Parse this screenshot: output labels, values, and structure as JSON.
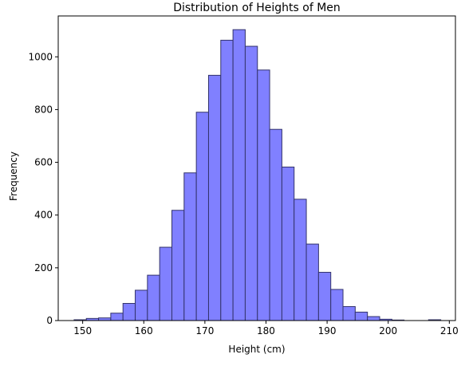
{
  "chart_data": {
    "type": "bar",
    "title": "Distribution of Heights of Men",
    "xlabel": "Height (cm)",
    "ylabel": "Frequency",
    "xlim": [
      146,
      211
    ],
    "ylim": [
      0,
      1155
    ],
    "xticks": [
      150,
      160,
      170,
      180,
      190,
      200,
      210
    ],
    "yticks": [
      0,
      200,
      400,
      600,
      800,
      1000
    ],
    "grid": false,
    "bar_color": "#8080ff",
    "edge_color": "#33336b",
    "bins": [
      {
        "x0": 148.6,
        "x1": 150.6,
        "count": 3
      },
      {
        "x0": 150.6,
        "x1": 152.6,
        "count": 8
      },
      {
        "x0": 152.6,
        "x1": 154.6,
        "count": 10
      },
      {
        "x0": 154.6,
        "x1": 156.6,
        "count": 28
      },
      {
        "x0": 156.6,
        "x1": 158.6,
        "count": 65
      },
      {
        "x0": 158.6,
        "x1": 160.6,
        "count": 115
      },
      {
        "x0": 160.6,
        "x1": 162.6,
        "count": 172
      },
      {
        "x0": 162.6,
        "x1": 164.6,
        "count": 278
      },
      {
        "x0": 164.6,
        "x1": 166.6,
        "count": 418
      },
      {
        "x0": 166.6,
        "x1": 168.6,
        "count": 560
      },
      {
        "x0": 168.6,
        "x1": 170.6,
        "count": 790
      },
      {
        "x0": 170.6,
        "x1": 172.6,
        "count": 930
      },
      {
        "x0": 172.6,
        "x1": 174.6,
        "count": 1063
      },
      {
        "x0": 174.6,
        "x1": 176.6,
        "count": 1103
      },
      {
        "x0": 176.6,
        "x1": 178.6,
        "count": 1040
      },
      {
        "x0": 178.6,
        "x1": 180.6,
        "count": 950
      },
      {
        "x0": 180.6,
        "x1": 182.6,
        "count": 725
      },
      {
        "x0": 182.6,
        "x1": 184.6,
        "count": 582
      },
      {
        "x0": 184.6,
        "x1": 186.6,
        "count": 460
      },
      {
        "x0": 186.6,
        "x1": 188.6,
        "count": 290
      },
      {
        "x0": 188.6,
        "x1": 190.6,
        "count": 183
      },
      {
        "x0": 190.6,
        "x1": 192.6,
        "count": 118
      },
      {
        "x0": 192.6,
        "x1": 194.6,
        "count": 53
      },
      {
        "x0": 194.6,
        "x1": 196.6,
        "count": 32
      },
      {
        "x0": 196.6,
        "x1": 198.6,
        "count": 15
      },
      {
        "x0": 198.6,
        "x1": 200.6,
        "count": 5
      },
      {
        "x0": 200.6,
        "x1": 202.6,
        "count": 2
      },
      {
        "x0": 202.6,
        "x1": 204.6,
        "count": 0
      },
      {
        "x0": 204.6,
        "x1": 206.6,
        "count": 0
      },
      {
        "x0": 206.6,
        "x1": 208.6,
        "count": 3
      }
    ]
  }
}
